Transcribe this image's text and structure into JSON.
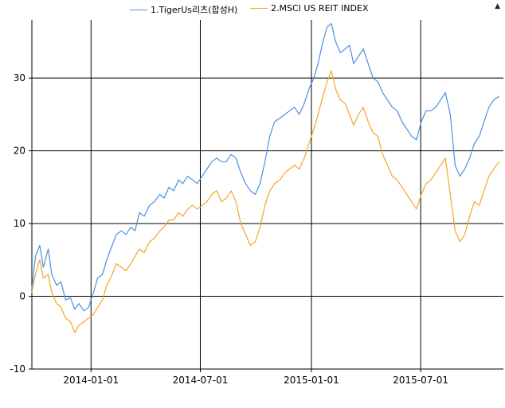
{
  "chart_data": {
    "type": "line",
    "title": "",
    "xlabel": "",
    "ylabel": "",
    "ylim": [
      -10,
      38
    ],
    "xlim": [
      "2013-09-25",
      "2015-11-15"
    ],
    "yticks": [
      -10,
      0,
      10,
      20,
      30
    ],
    "ytick_labels": [
      "-10",
      "0",
      "10",
      "20",
      "30"
    ],
    "xticks": [
      "2014-01-01",
      "2014-07-01",
      "2015-01-01",
      "2015-07-01"
    ],
    "xtick_labels": [
      "2014-01-01",
      "2014-07-01",
      "2015-01-01",
      "2015-07-01"
    ],
    "grid": true,
    "legend_position": "top-center",
    "series": [
      {
        "name": "1.TigerUs리츠(합성H)",
        "color": "#4a90e2",
        "points": [
          [
            "2013-09-25",
            1
          ],
          [
            "2013-10-01",
            5.5
          ],
          [
            "2013-10-08",
            7
          ],
          [
            "2013-10-14",
            4
          ],
          [
            "2013-10-22",
            6.5
          ],
          [
            "2013-10-28",
            3
          ],
          [
            "2013-11-05",
            1.5
          ],
          [
            "2013-11-12",
            2
          ],
          [
            "2013-11-20",
            -0.5
          ],
          [
            "2013-11-28",
            -0.2
          ],
          [
            "2013-12-05",
            -1.8
          ],
          [
            "2013-12-12",
            -1
          ],
          [
            "2013-12-20",
            -2
          ],
          [
            "2013-12-28",
            -1.5
          ],
          [
            "2014-01-05",
            0.5
          ],
          [
            "2014-01-12",
            2.5
          ],
          [
            "2014-01-20",
            3
          ],
          [
            "2014-01-27",
            5
          ],
          [
            "2014-02-05",
            7
          ],
          [
            "2014-02-12",
            8.5
          ],
          [
            "2014-02-20",
            9
          ],
          [
            "2014-02-28",
            8.5
          ],
          [
            "2014-03-08",
            9.5
          ],
          [
            "2014-03-15",
            9
          ],
          [
            "2014-03-22",
            11.5
          ],
          [
            "2014-03-30",
            11
          ],
          [
            "2014-04-08",
            12.5
          ],
          [
            "2014-04-16",
            13
          ],
          [
            "2014-04-25",
            14
          ],
          [
            "2014-05-02",
            13.5
          ],
          [
            "2014-05-10",
            15
          ],
          [
            "2014-05-18",
            14.5
          ],
          [
            "2014-05-26",
            16
          ],
          [
            "2014-06-02",
            15.5
          ],
          [
            "2014-06-10",
            16.5
          ],
          [
            "2014-06-18",
            16
          ],
          [
            "2014-06-26",
            15.5
          ],
          [
            "2014-07-04",
            16.5
          ],
          [
            "2014-07-12",
            17.5
          ],
          [
            "2014-07-20",
            18.5
          ],
          [
            "2014-07-28",
            19
          ],
          [
            "2014-08-05",
            18.5
          ],
          [
            "2014-08-13",
            18.5
          ],
          [
            "2014-08-21",
            19.5
          ],
          [
            "2014-08-29",
            19
          ],
          [
            "2014-09-06",
            17
          ],
          [
            "2014-09-14",
            15.5
          ],
          [
            "2014-09-22",
            14.5
          ],
          [
            "2014-09-30",
            14
          ],
          [
            "2014-10-08",
            15.5
          ],
          [
            "2014-10-16",
            18.5
          ],
          [
            "2014-10-24",
            22
          ],
          [
            "2014-11-01",
            24
          ],
          [
            "2014-11-10",
            24.5
          ],
          [
            "2014-11-18",
            25
          ],
          [
            "2014-11-26",
            25.5
          ],
          [
            "2014-12-04",
            26
          ],
          [
            "2014-12-12",
            25
          ],
          [
            "2014-12-20",
            26.5
          ],
          [
            "2014-12-28",
            28.5
          ],
          [
            "2015-01-05",
            30
          ],
          [
            "2015-01-12",
            32
          ],
          [
            "2015-01-20",
            35
          ],
          [
            "2015-01-27",
            37
          ],
          [
            "2015-02-03",
            37.5
          ],
          [
            "2015-02-10",
            35
          ],
          [
            "2015-02-18",
            33.5
          ],
          [
            "2015-02-26",
            34
          ],
          [
            "2015-03-05",
            34.5
          ],
          [
            "2015-03-12",
            32
          ],
          [
            "2015-03-20",
            33
          ],
          [
            "2015-03-28",
            34
          ],
          [
            "2015-04-05",
            32
          ],
          [
            "2015-04-13",
            30
          ],
          [
            "2015-04-21",
            29.5
          ],
          [
            "2015-04-29",
            28
          ],
          [
            "2015-05-07",
            27
          ],
          [
            "2015-05-15",
            26
          ],
          [
            "2015-05-23",
            25.5
          ],
          [
            "2015-05-31",
            24
          ],
          [
            "2015-06-08",
            23
          ],
          [
            "2015-06-16",
            22
          ],
          [
            "2015-06-24",
            21.5
          ],
          [
            "2015-07-02",
            24
          ],
          [
            "2015-07-10",
            25.5
          ],
          [
            "2015-07-18",
            25.5
          ],
          [
            "2015-07-26",
            26
          ],
          [
            "2015-08-03",
            27
          ],
          [
            "2015-08-11",
            28
          ],
          [
            "2015-08-19",
            25
          ],
          [
            "2015-08-27",
            18
          ],
          [
            "2015-09-04",
            16.5
          ],
          [
            "2015-09-12",
            17.5
          ],
          [
            "2015-09-20",
            19
          ],
          [
            "2015-09-28",
            21
          ],
          [
            "2015-10-06",
            22
          ],
          [
            "2015-10-14",
            24
          ],
          [
            "2015-10-22",
            26
          ],
          [
            "2015-10-30",
            27
          ],
          [
            "2015-11-08",
            27.5
          ]
        ]
      },
      {
        "name": "2.MSCI US REIT INDEX",
        "color": "#f5a623",
        "points": [
          [
            "2013-09-25",
            0.5
          ],
          [
            "2013-10-01",
            3
          ],
          [
            "2013-10-08",
            5
          ],
          [
            "2013-10-14",
            2.5
          ],
          [
            "2013-10-22",
            3
          ],
          [
            "2013-10-28",
            0.5
          ],
          [
            "2013-11-05",
            -1
          ],
          [
            "2013-11-12",
            -1.5
          ],
          [
            "2013-11-20",
            -3
          ],
          [
            "2013-11-28",
            -3.5
          ],
          [
            "2013-12-05",
            -5
          ],
          [
            "2013-12-12",
            -4
          ],
          [
            "2013-12-20",
            -3.5
          ],
          [
            "2013-12-28",
            -3
          ],
          [
            "2014-01-05",
            -2.5
          ],
          [
            "2014-01-12",
            -1.5
          ],
          [
            "2014-01-20",
            -0.5
          ],
          [
            "2014-01-27",
            1.5
          ],
          [
            "2014-02-05",
            3
          ],
          [
            "2014-02-12",
            4.5
          ],
          [
            "2014-02-20",
            4
          ],
          [
            "2014-02-28",
            3.5
          ],
          [
            "2014-03-08",
            4.5
          ],
          [
            "2014-03-15",
            5.5
          ],
          [
            "2014-03-22",
            6.5
          ],
          [
            "2014-03-30",
            6
          ],
          [
            "2014-04-08",
            7.5
          ],
          [
            "2014-04-16",
            8
          ],
          [
            "2014-04-25",
            9
          ],
          [
            "2014-05-02",
            9.5
          ],
          [
            "2014-05-10",
            10.5
          ],
          [
            "2014-05-18",
            10.5
          ],
          [
            "2014-05-26",
            11.5
          ],
          [
            "2014-06-02",
            11
          ],
          [
            "2014-06-10",
            12
          ],
          [
            "2014-06-18",
            12.5
          ],
          [
            "2014-06-26",
            12
          ],
          [
            "2014-07-04",
            12.5
          ],
          [
            "2014-07-12",
            13
          ],
          [
            "2014-07-20",
            14
          ],
          [
            "2014-07-28",
            14.5
          ],
          [
            "2014-08-05",
            13
          ],
          [
            "2014-08-13",
            13.5
          ],
          [
            "2014-08-21",
            14.5
          ],
          [
            "2014-08-29",
            13
          ],
          [
            "2014-09-06",
            10
          ],
          [
            "2014-09-14",
            8.5
          ],
          [
            "2014-09-22",
            7
          ],
          [
            "2014-09-30",
            7.5
          ],
          [
            "2014-10-08",
            9.5
          ],
          [
            "2014-10-16",
            12.5
          ],
          [
            "2014-10-24",
            14.5
          ],
          [
            "2014-11-01",
            15.5
          ],
          [
            "2014-11-10",
            16
          ],
          [
            "2014-11-18",
            17
          ],
          [
            "2014-11-26",
            17.5
          ],
          [
            "2014-12-04",
            18
          ],
          [
            "2014-12-12",
            17.5
          ],
          [
            "2014-12-20",
            19
          ],
          [
            "2014-12-28",
            21
          ],
          [
            "2015-01-05",
            23
          ],
          [
            "2015-01-12",
            25
          ],
          [
            "2015-01-20",
            27.5
          ],
          [
            "2015-01-27",
            29.5
          ],
          [
            "2015-02-03",
            31
          ],
          [
            "2015-02-10",
            28.5
          ],
          [
            "2015-02-18",
            27
          ],
          [
            "2015-02-26",
            26.5
          ],
          [
            "2015-03-05",
            25
          ],
          [
            "2015-03-12",
            23.5
          ],
          [
            "2015-03-20",
            25
          ],
          [
            "2015-03-28",
            26
          ],
          [
            "2015-04-05",
            24
          ],
          [
            "2015-04-13",
            22.5
          ],
          [
            "2015-04-21",
            22
          ],
          [
            "2015-04-29",
            19.5
          ],
          [
            "2015-05-07",
            18
          ],
          [
            "2015-05-15",
            16.5
          ],
          [
            "2015-05-23",
            16
          ],
          [
            "2015-05-31",
            15
          ],
          [
            "2015-06-08",
            14
          ],
          [
            "2015-06-16",
            13
          ],
          [
            "2015-06-24",
            12
          ],
          [
            "2015-07-02",
            14
          ],
          [
            "2015-07-10",
            15.5
          ],
          [
            "2015-07-18",
            16
          ],
          [
            "2015-07-26",
            17
          ],
          [
            "2015-08-03",
            18
          ],
          [
            "2015-08-11",
            19
          ],
          [
            "2015-08-19",
            14
          ],
          [
            "2015-08-27",
            9
          ],
          [
            "2015-09-04",
            7.5
          ],
          [
            "2015-09-12",
            8.5
          ],
          [
            "2015-09-20",
            11
          ],
          [
            "2015-09-28",
            13
          ],
          [
            "2015-10-06",
            12.5
          ],
          [
            "2015-10-14",
            14.5
          ],
          [
            "2015-10-22",
            16.5
          ],
          [
            "2015-10-30",
            17.5
          ],
          [
            "2015-11-08",
            18.5
          ]
        ]
      }
    ]
  },
  "ui": {
    "scroll_arrow": "▲"
  }
}
